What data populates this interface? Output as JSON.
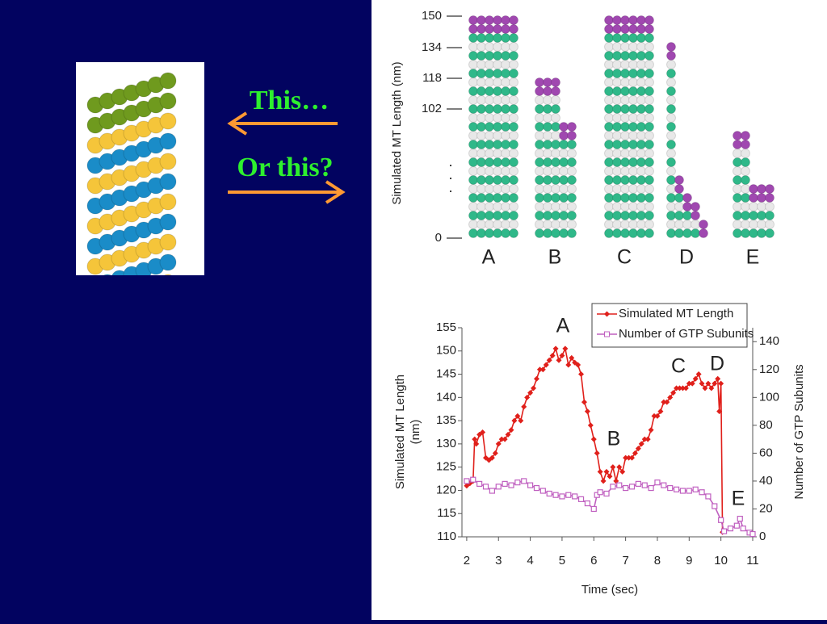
{
  "slide": {
    "question_1": "This…",
    "question_2": "Or this?"
  },
  "top_figure": {
    "y_label": "Simulated MT Length (nm)",
    "yticks": [
      150,
      134,
      118,
      102,
      0
    ],
    "columns": [
      "A",
      "B",
      "C",
      "D",
      "E"
    ]
  },
  "chart_data": {
    "type": "line",
    "xlabel": "Time (sec)",
    "ylabel": "Simulated MT Length (nm)",
    "y2label": "Number of GTP Subunits",
    "xlim": [
      1.85,
      11
    ],
    "xticks": [
      2,
      3,
      4,
      5,
      6,
      7,
      8,
      9,
      10,
      11
    ],
    "ylim": [
      110,
      155
    ],
    "yticks": [
      110,
      115,
      120,
      125,
      130,
      135,
      140,
      145,
      150,
      155
    ],
    "y2lim": [
      0,
      150
    ],
    "y2ticks": [
      0,
      20,
      40,
      60,
      80,
      100,
      120,
      140
    ],
    "legend": "top-right",
    "annotations": [
      "A",
      "B",
      "C",
      "D",
      "E"
    ],
    "series": [
      {
        "name": "Simulated MT Length",
        "color": "#e0201b",
        "marker": "diamond",
        "x": [
          2.0,
          2.1,
          2.2,
          2.25,
          2.3,
          2.4,
          2.5,
          2.6,
          2.7,
          2.8,
          2.9,
          3.0,
          3.1,
          3.2,
          3.3,
          3.4,
          3.5,
          3.6,
          3.7,
          3.8,
          3.9,
          4.0,
          4.1,
          4.2,
          4.3,
          4.4,
          4.5,
          4.6,
          4.7,
          4.8,
          4.9,
          5.0,
          5.1,
          5.2,
          5.3,
          5.4,
          5.5,
          5.6,
          5.7,
          5.8,
          5.9,
          6.0,
          6.1,
          6.2,
          6.3,
          6.4,
          6.5,
          6.6,
          6.7,
          6.8,
          6.9,
          7.0,
          7.1,
          7.2,
          7.3,
          7.4,
          7.5,
          7.6,
          7.7,
          7.8,
          7.9,
          8.0,
          8.1,
          8.2,
          8.3,
          8.4,
          8.5,
          8.6,
          8.7,
          8.8,
          8.9,
          9.0,
          9.1,
          9.2,
          9.3,
          9.4,
          9.5,
          9.6,
          9.7,
          9.8,
          9.9,
          9.95,
          10.0,
          10.05
        ],
        "values": [
          121,
          121.5,
          122,
          131,
          130,
          132,
          132.5,
          127,
          126.5,
          127,
          128,
          130,
          131,
          131,
          132,
          133,
          135,
          136,
          135,
          138,
          140,
          141,
          142,
          144,
          146,
          146,
          147,
          148,
          149,
          150.5,
          148,
          149,
          150.5,
          147,
          148.5,
          147.5,
          147,
          145,
          139,
          137,
          134,
          131,
          128,
          124,
          122,
          124,
          123,
          125,
          122,
          125,
          124,
          127,
          127,
          127,
          128,
          129,
          130,
          131,
          131,
          133,
          136,
          136,
          137,
          139,
          139,
          140,
          141,
          142,
          142,
          142,
          142,
          143,
          143,
          144,
          145,
          143,
          142,
          143,
          142,
          143,
          144,
          137,
          143,
          111
        ]
      },
      {
        "name": "Number of GTP Subunits",
        "color": "#c060c0",
        "marker": "square",
        "axis": "y2",
        "x": [
          2.0,
          2.2,
          2.4,
          2.6,
          2.8,
          3.0,
          3.2,
          3.4,
          3.6,
          3.8,
          4.0,
          4.2,
          4.4,
          4.6,
          4.8,
          5.0,
          5.2,
          5.4,
          5.6,
          5.8,
          6.0,
          6.1,
          6.2,
          6.4,
          6.6,
          6.8,
          7.0,
          7.2,
          7.4,
          7.6,
          7.8,
          8.0,
          8.2,
          8.4,
          8.6,
          8.8,
          9.0,
          9.2,
          9.4,
          9.6,
          9.8,
          10.0,
          10.1,
          10.3,
          10.5,
          10.6,
          10.7,
          10.9,
          11.0
        ],
        "values": [
          40,
          41,
          38,
          36,
          33,
          36,
          38,
          37,
          39,
          40,
          37,
          35,
          33,
          31,
          30,
          29,
          30,
          29,
          27,
          24,
          20,
          30,
          32,
          31,
          36,
          37,
          35,
          36,
          38,
          37,
          35,
          39,
          37,
          35,
          34,
          33,
          33,
          34,
          32,
          29,
          22,
          12,
          4,
          6,
          8,
          13,
          6,
          3,
          2
        ]
      }
    ]
  }
}
